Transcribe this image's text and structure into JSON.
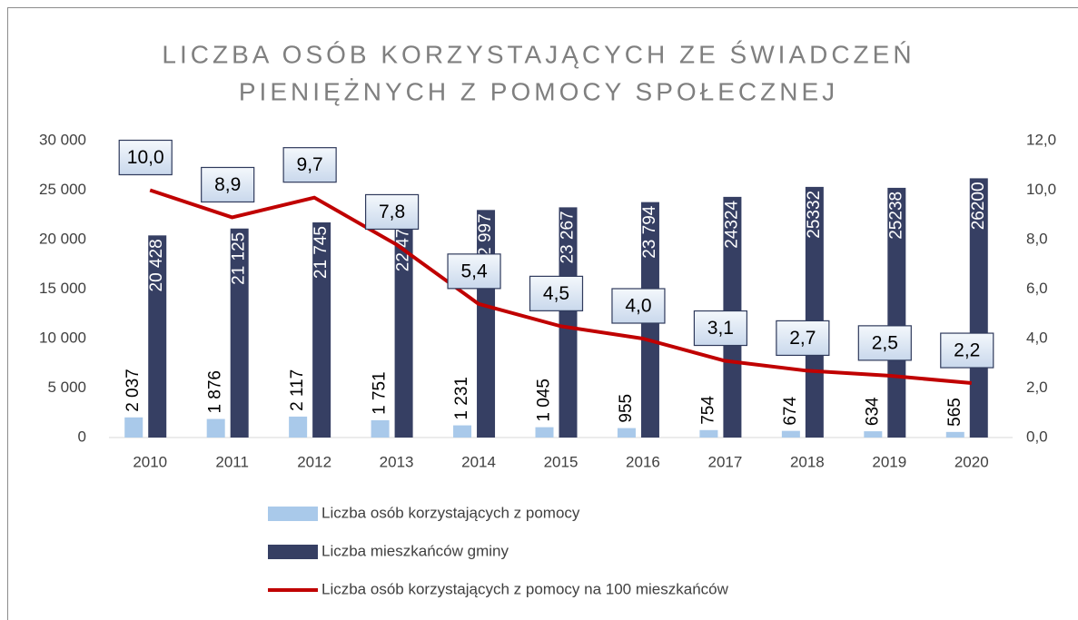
{
  "chart_data": {
    "type": "bar_line",
    "title": [
      "LICZBA OSÓB KORZYSTAJĄCYCH ZE ŚWIADCZEŃ",
      "PIENIĘŻNYCH Z POMOCY SPOŁECZNEJ"
    ],
    "categories": [
      "2010",
      "2011",
      "2012",
      "2013",
      "2014",
      "2015",
      "2016",
      "2017",
      "2018",
      "2019",
      "2020"
    ],
    "series": [
      {
        "name": "Liczba osób korzystających z pomocy",
        "type": "bar",
        "color": "#a9c9ea",
        "values": [
          2037,
          1876,
          2117,
          1751,
          1231,
          1045,
          955,
          754,
          674,
          634,
          565
        ],
        "value_labels": [
          "2 037",
          "1 876",
          "2 117",
          "1 751",
          "1 231",
          "1 045",
          "955",
          "754",
          "674",
          "634",
          "565"
        ]
      },
      {
        "name": "Liczba mieszkańców gminy",
        "type": "bar",
        "color": "#363f63",
        "values": [
          20428,
          21125,
          21745,
          22471,
          22997,
          23267,
          23794,
          24324,
          25332,
          25238,
          26200
        ],
        "value_labels": [
          "20 428",
          "21 125",
          "21 745",
          "22 471",
          "22 997",
          "23 267",
          "23 794",
          "24324",
          "25332",
          "25238",
          "26200"
        ]
      },
      {
        "name": "Liczba osób korzystających z pomocy na 100 mieszkańców",
        "type": "line",
        "axis": "y2",
        "color": "#c00000",
        "values": [
          10.0,
          8.9,
          9.7,
          7.8,
          5.4,
          4.5,
          4.0,
          3.1,
          2.7,
          2.5,
          2.2
        ],
        "value_labels": [
          "10,0",
          "8,9",
          "9,7",
          "7,8",
          "5,4",
          "4,5",
          "4,0",
          "3,1",
          "2,7",
          "2,5",
          "2,2"
        ]
      }
    ],
    "ylim": [
      0,
      30000
    ],
    "yticks": [
      0,
      {
        "value": 5000,
        "label": "5 000"
      },
      {
        "value": 10000,
        "label": "10 000"
      },
      {
        "value": 15000,
        "label": "15 000"
      },
      {
        "value": 20000,
        "label": "20 000"
      },
      {
        "value": 25000,
        "label": "25 000"
      },
      {
        "value": 30000,
        "label": "30 000"
      }
    ],
    "y2lim": [
      0,
      12
    ],
    "y2ticks": [
      {
        "value": 0,
        "label": "0,0"
      },
      {
        "value": 2,
        "label": "2,0"
      },
      {
        "value": 4,
        "label": "4,0"
      },
      {
        "value": 6,
        "label": "6,0"
      },
      {
        "value": 8,
        "label": "8,0"
      },
      {
        "value": 10,
        "label": "10,0"
      },
      {
        "value": 12,
        "label": "12,0"
      }
    ],
    "grid": false,
    "legend": "bottom"
  }
}
